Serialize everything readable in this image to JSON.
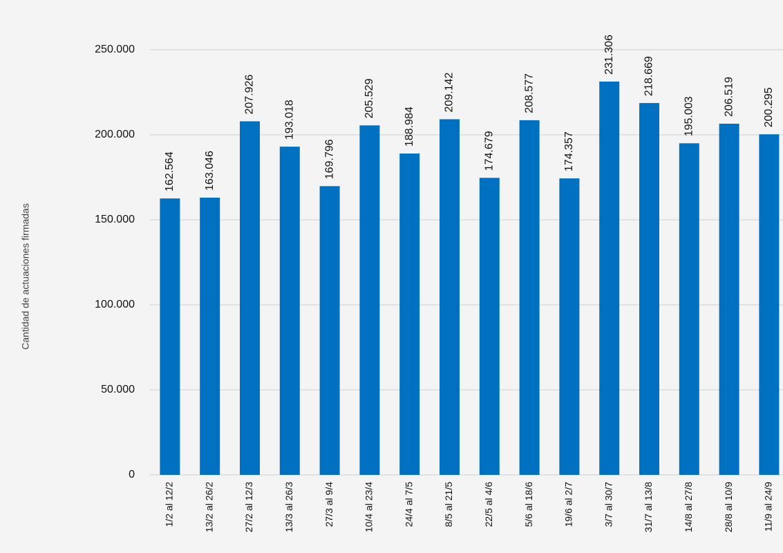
{
  "chart_data": {
    "type": "bar",
    "y_label": "Cantidad de actuaciones firmadas",
    "categories": [
      "1/2 al 12/2",
      "13/2 al 26/2",
      "27/2 al 12/3",
      "13/3 al 26/3",
      "27/3 al 9/4",
      "10/4 al 23/4",
      "24/4 al 7/5",
      "8/5 al 21/5",
      "22/5 al 4/6",
      "5/6 al 18/6",
      "19/6 al 2/7",
      "3/7 al 30/7",
      "31/7 al 13/8",
      "14/8 al 27/8",
      "28/8 al 10/9",
      "11/9 al 24/9"
    ],
    "values": [
      162564,
      163046,
      207926,
      193018,
      169796,
      205529,
      188984,
      209142,
      174679,
      208577,
      174357,
      231306,
      218669,
      195003,
      206519,
      200295
    ],
    "value_labels": [
      "162.564",
      "163.046",
      "207.926",
      "193.018",
      "169.796",
      "205.529",
      "188.984",
      "209.142",
      "174.679",
      "208.577",
      "174.357",
      "231.306",
      "218.669",
      "195.003",
      "206.519",
      "200.295"
    ],
    "color": "#0070c0",
    "ylim": [
      0,
      250000
    ],
    "yticks": [
      0,
      {
        "value": 50000,
        "label": "50.000"
      },
      {
        "value": 100000,
        "label": "100.000"
      },
      {
        "value": 150000,
        "label": "150.000"
      },
      {
        "value": 200000,
        "label": "200.000"
      },
      {
        "value": 250000,
        "label": "250.000"
      }
    ],
    "grid": true
  }
}
